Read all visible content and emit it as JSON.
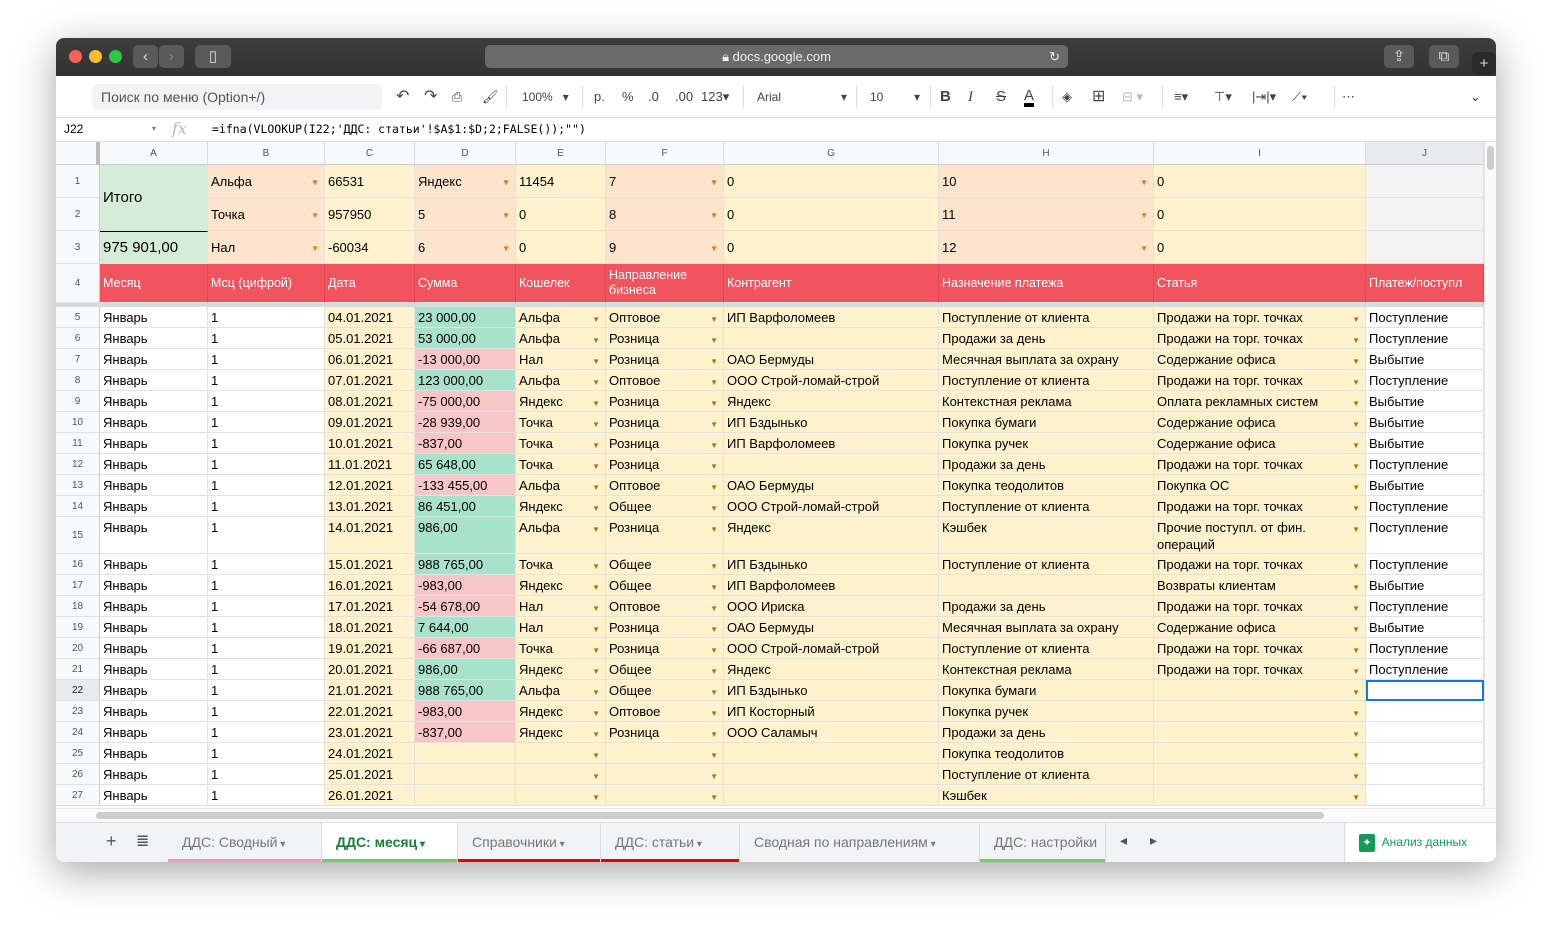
{
  "browser": {
    "url": "docs.google.com"
  },
  "toolbar": {
    "search_placeholder": "Поиск по меню (Option+/)",
    "zoom": "100%",
    "currency": "р.",
    "percent": "%",
    "dec_less": ".0",
    "dec_more": ".00",
    "format": "123",
    "font": "Arial",
    "font_size": "10",
    "more": "⋯"
  },
  "formula_bar": {
    "cell_ref": "J22",
    "fx": "fx",
    "formula": "=ifna(VLOOKUP(I22;'ДДС: статьи'!$A$1:$D;2;FALSE());\"\")"
  },
  "columns": [
    "A",
    "B",
    "C",
    "D",
    "E",
    "F",
    "G",
    "H",
    "I",
    "J"
  ],
  "top_rows": [
    [
      "Итого",
      "Альфа",
      "66531",
      "Яндекс",
      "11454",
      "7",
      "0",
      "10",
      "0",
      ""
    ],
    [
      "",
      "Точка",
      "957950",
      "5",
      "0",
      "8",
      "0",
      "11",
      "0",
      ""
    ],
    [
      "975 901,00",
      "Нал",
      "-60034",
      "6",
      "0",
      "9",
      "0",
      "12",
      "0",
      ""
    ]
  ],
  "headers": [
    "Месяц",
    "Мсц (цифрой)",
    "Дата",
    "Сумма",
    "Кошелек",
    "Направление бизнеса",
    "Контрагент",
    "Назначение платежа",
    "Статья",
    "Платеж/поступл"
  ],
  "rows": [
    [
      "Январь",
      "1",
      "04.01.2021",
      "23 000,00",
      "Альфа",
      "Оптовое",
      "ИП Варфоломеев",
      "Поступление от клиента",
      "Продажи на торг. точках",
      "Поступление"
    ],
    [
      "Январь",
      "1",
      "05.01.2021",
      "53 000,00",
      "Альфа",
      "Розница",
      "",
      "Продажи за день",
      "Продажи на торг. точках",
      "Поступление"
    ],
    [
      "Январь",
      "1",
      "06.01.2021",
      "-13 000,00",
      "Нал",
      "Розница",
      "ОАО Бермуды",
      "Месячная выплата за охрану",
      "Содержание офиса",
      "Выбытие"
    ],
    [
      "Январь",
      "1",
      "07.01.2021",
      "123 000,00",
      "Альфа",
      "Оптовое",
      "ООО Строй-ломай-строй",
      "Поступление от клиента",
      "Продажи на торг. точках",
      "Поступление"
    ],
    [
      "Январь",
      "1",
      "08.01.2021",
      "-75 000,00",
      "Яндекс",
      "Розница",
      "Яндекс",
      "Контекстная реклама",
      "Оплата рекламных систем",
      "Выбытие"
    ],
    [
      "Январь",
      "1",
      "09.01.2021",
      "-28 939,00",
      "Точка",
      "Розница",
      "ИП Бздынько",
      "Покупка бумаги",
      "Содержание офиса",
      "Выбытие"
    ],
    [
      "Январь",
      "1",
      "10.01.2021",
      "-837,00",
      "Точка",
      "Розница",
      "ИП Варфоломеев",
      "Покупка ручек",
      "Содержание офиса",
      "Выбытие"
    ],
    [
      "Январь",
      "1",
      "11.01.2021",
      "65 648,00",
      "Точка",
      "Розница",
      "",
      "Продажи за день",
      "Продажи на торг. точках",
      "Поступление"
    ],
    [
      "Январь",
      "1",
      "12.01.2021",
      "-133 455,00",
      "Альфа",
      "Оптовое",
      "ОАО Бермуды",
      "Покупка теодолитов",
      "Покупка ОС",
      "Выбытие"
    ],
    [
      "Январь",
      "1",
      "13.01.2021",
      "86 451,00",
      "Яндекс",
      "Общее",
      "ООО Строй-ломай-строй",
      "Поступление от клиента",
      "Продажи на торг. точках",
      "Поступление"
    ],
    [
      "Январь",
      "1",
      "14.01.2021",
      "986,00",
      "Альфа",
      "Розница",
      "Яндекс",
      "Кэшбек",
      "Прочие поступл. от фин. операций",
      "Поступление"
    ],
    [
      "Январь",
      "1",
      "15.01.2021",
      "988 765,00",
      "Точка",
      "Общее",
      "ИП Бздынько",
      "Поступление от клиента",
      "Продажи на торг. точках",
      "Поступление"
    ],
    [
      "Январь",
      "1",
      "16.01.2021",
      "-983,00",
      "Яндекс",
      "Общее",
      "ИП Варфоломеев",
      "",
      "Возвраты клиентам",
      "Выбытие"
    ],
    [
      "Январь",
      "1",
      "17.01.2021",
      "-54 678,00",
      "Нал",
      "Оптовое",
      "ООО Ириска",
      "Продажи за день",
      "Продажи на торг. точках",
      "Поступление"
    ],
    [
      "Январь",
      "1",
      "18.01.2021",
      "7 644,00",
      "Нал",
      "Розница",
      "ОАО Бермуды",
      "Месячная выплата за охрану",
      "Содержание офиса",
      "Выбытие"
    ],
    [
      "Январь",
      "1",
      "19.01.2021",
      "-66 687,00",
      "Точка",
      "Розница",
      "ООО Строй-ломай-строй",
      "Поступление от клиента",
      "Продажи на торг. точках",
      "Поступление"
    ],
    [
      "Январь",
      "1",
      "20.01.2021",
      "986,00",
      "Яндекс",
      "Общее",
      "Яндекс",
      "Контекстная реклама",
      "Продажи на торг. точках",
      "Поступление"
    ],
    [
      "Январь",
      "1",
      "21.01.2021",
      "988 765,00",
      "Альфа",
      "Общее",
      "ИП Бздынько",
      "Покупка бумаги",
      "",
      ""
    ],
    [
      "Январь",
      "1",
      "22.01.2021",
      "-983,00",
      "Яндекс",
      "Оптовое",
      "ИП Косторный",
      "Покупка ручек",
      "",
      ""
    ],
    [
      "Январь",
      "1",
      "23.01.2021",
      "-837,00",
      "Яндекс",
      "Розница",
      "ООО Саламыч",
      "Продажи за день",
      "",
      ""
    ],
    [
      "Январь",
      "1",
      "24.01.2021",
      "",
      "",
      "",
      "",
      "Покупка теодолитов",
      "",
      ""
    ],
    [
      "Январь",
      "1",
      "25.01.2021",
      "",
      "",
      "",
      "",
      "Поступление от клиента",
      "",
      ""
    ],
    [
      "Январь",
      "1",
      "26.01.2021",
      "",
      "",
      "",
      "",
      "Кэшбек",
      "",
      ""
    ]
  ],
  "selected_cell": "J22",
  "sheet_tabs": [
    {
      "label": "ДДС: Сводный",
      "color": "#e6a0c4",
      "active": false
    },
    {
      "label": "ДДС: месяц",
      "color": "#7cc576",
      "active": true
    },
    {
      "label": "Справочники",
      "color": "#e60000",
      "active": false
    },
    {
      "label": "ДДС: статьи",
      "color": "#e60000",
      "active": false
    },
    {
      "label": "Сводная по направлениям",
      "color": "",
      "active": false
    },
    {
      "label": "ДДС: настройки",
      "color": "#7cc576",
      "active": false
    }
  ],
  "explore_label": "Анализ данных",
  "colors": {
    "header_red": "#f1545f",
    "positive": "#a8e2cc",
    "negative": "#f8c6c6",
    "yellow": "#fff2cc",
    "peach": "#fde4cc",
    "total_green": "#d4edd6",
    "accent": "#0f9d58"
  }
}
